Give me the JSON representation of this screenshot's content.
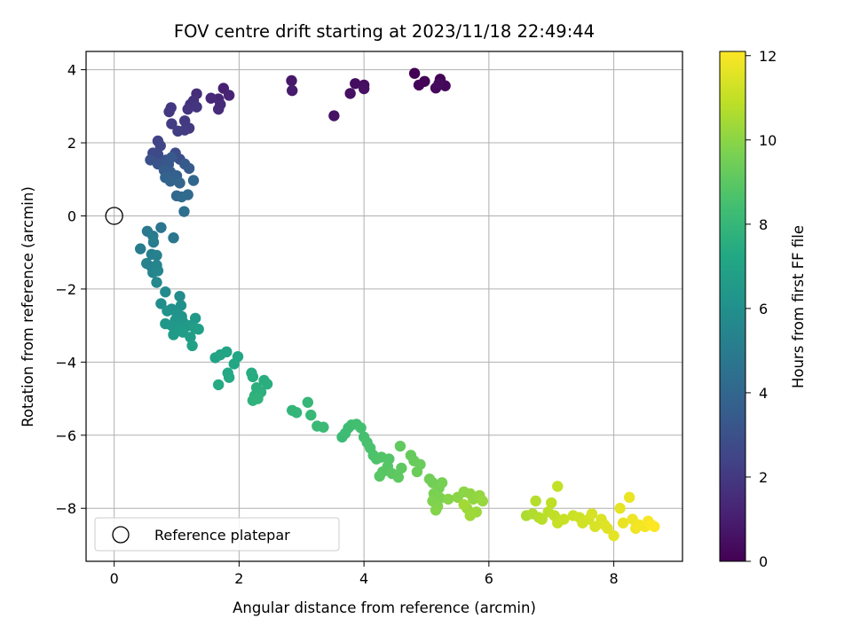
{
  "chart_data": {
    "type": "scatter",
    "title": "FOV centre drift starting at 2023/11/18 22:49:44",
    "xlabel": "Angular distance from reference (arcmin)",
    "ylabel": "Rotation from reference (arcmin)",
    "colorbar_label": "Hours from first FF file",
    "colormap": "viridis",
    "xlim": [
      -0.45,
      9.1
    ],
    "ylim": [
      -9.45,
      4.5
    ],
    "clim": [
      0,
      12.1
    ],
    "xticks": [
      0,
      2,
      4,
      6,
      8
    ],
    "yticks": [
      -8,
      -6,
      -4,
      -2,
      0,
      2,
      4
    ],
    "colorbar_ticks": [
      0,
      2,
      4,
      6,
      8,
      10,
      12
    ],
    "grid": true,
    "legend": {
      "placement": "lower-left",
      "entries": [
        "Reference platepar"
      ]
    },
    "reference_point": {
      "x": 0,
      "y": 0,
      "label": "Reference platepar"
    },
    "points": [
      {
        "x": 4.81,
        "y": 3.9,
        "t": 0.0
      },
      {
        "x": 5.22,
        "y": 3.74,
        "t": 0.05
      },
      {
        "x": 4.97,
        "y": 3.68,
        "t": 0.1
      },
      {
        "x": 4.88,
        "y": 3.58,
        "t": 0.15
      },
      {
        "x": 5.3,
        "y": 3.56,
        "t": 0.2
      },
      {
        "x": 5.15,
        "y": 3.5,
        "t": 0.25
      },
      {
        "x": 5.2,
        "y": 3.62,
        "t": 0.3
      },
      {
        "x": 3.86,
        "y": 3.62,
        "t": 0.4
      },
      {
        "x": 4.0,
        "y": 3.58,
        "t": 0.45
      },
      {
        "x": 3.78,
        "y": 3.35,
        "t": 0.5
      },
      {
        "x": 4.0,
        "y": 3.48,
        "t": 0.55
      },
      {
        "x": 3.52,
        "y": 2.74,
        "t": 0.6
      },
      {
        "x": 2.84,
        "y": 3.7,
        "t": 0.8
      },
      {
        "x": 2.85,
        "y": 3.43,
        "t": 0.9
      },
      {
        "x": 1.75,
        "y": 3.49,
        "t": 1.1
      },
      {
        "x": 1.84,
        "y": 3.3,
        "t": 1.2
      },
      {
        "x": 1.67,
        "y": 3.2,
        "t": 1.3
      },
      {
        "x": 1.55,
        "y": 3.22,
        "t": 1.4
      },
      {
        "x": 1.7,
        "y": 3.05,
        "t": 1.45
      },
      {
        "x": 1.67,
        "y": 2.92,
        "t": 1.5
      },
      {
        "x": 1.32,
        "y": 3.34,
        "t": 1.6
      },
      {
        "x": 1.27,
        "y": 3.15,
        "t": 1.7
      },
      {
        "x": 1.22,
        "y": 3.05,
        "t": 1.75
      },
      {
        "x": 1.18,
        "y": 2.92,
        "t": 1.8
      },
      {
        "x": 1.32,
        "y": 2.98,
        "t": 1.85
      },
      {
        "x": 0.91,
        "y": 2.96,
        "t": 1.9
      },
      {
        "x": 0.88,
        "y": 2.85,
        "t": 1.95
      },
      {
        "x": 1.13,
        "y": 2.6,
        "t": 2.0
      },
      {
        "x": 1.2,
        "y": 2.4,
        "t": 2.05
      },
      {
        "x": 1.13,
        "y": 2.35,
        "t": 2.1
      },
      {
        "x": 0.92,
        "y": 2.52,
        "t": 2.15
      },
      {
        "x": 1.02,
        "y": 2.32,
        "t": 2.2
      },
      {
        "x": 0.7,
        "y": 2.05,
        "t": 2.4
      },
      {
        "x": 0.74,
        "y": 1.92,
        "t": 2.5
      },
      {
        "x": 0.62,
        "y": 1.72,
        "t": 2.6
      },
      {
        "x": 0.7,
        "y": 1.68,
        "t": 2.7
      },
      {
        "x": 0.98,
        "y": 1.72,
        "t": 2.8
      },
      {
        "x": 1.05,
        "y": 1.55,
        "t": 2.9
      },
      {
        "x": 0.58,
        "y": 1.53,
        "t": 3.0
      },
      {
        "x": 0.7,
        "y": 1.42,
        "t": 3.1
      },
      {
        "x": 0.83,
        "y": 1.53,
        "t": 3.2
      },
      {
        "x": 0.87,
        "y": 1.41,
        "t": 3.3
      },
      {
        "x": 0.92,
        "y": 1.6,
        "t": 3.35
      },
      {
        "x": 1.13,
        "y": 1.42,
        "t": 3.4
      },
      {
        "x": 1.2,
        "y": 1.3,
        "t": 3.45
      },
      {
        "x": 0.8,
        "y": 1.25,
        "t": 3.5
      },
      {
        "x": 0.9,
        "y": 1.2,
        "t": 3.6
      },
      {
        "x": 1.0,
        "y": 1.1,
        "t": 3.7
      },
      {
        "x": 0.82,
        "y": 1.05,
        "t": 3.8
      },
      {
        "x": 0.9,
        "y": 0.95,
        "t": 3.85
      },
      {
        "x": 1.05,
        "y": 0.9,
        "t": 3.9
      },
      {
        "x": 1.27,
        "y": 0.97,
        "t": 4.0
      },
      {
        "x": 1.0,
        "y": 0.55,
        "t": 4.1
      },
      {
        "x": 1.08,
        "y": 0.52,
        "t": 4.15
      },
      {
        "x": 1.18,
        "y": 0.58,
        "t": 4.2
      },
      {
        "x": 1.12,
        "y": 0.12,
        "t": 4.4
      },
      {
        "x": 0.75,
        "y": -0.32,
        "t": 4.7
      },
      {
        "x": 0.95,
        "y": -0.6,
        "t": 4.8
      },
      {
        "x": 0.53,
        "y": -0.42,
        "t": 4.9
      },
      {
        "x": 0.62,
        "y": -0.55,
        "t": 5.0
      },
      {
        "x": 0.42,
        "y": -0.9,
        "t": 5.05
      },
      {
        "x": 0.63,
        "y": -0.72,
        "t": 5.1
      },
      {
        "x": 0.6,
        "y": -1.05,
        "t": 5.2
      },
      {
        "x": 0.68,
        "y": -1.08,
        "t": 5.25
      },
      {
        "x": 0.52,
        "y": -1.3,
        "t": 5.3
      },
      {
        "x": 0.6,
        "y": -1.4,
        "t": 5.35
      },
      {
        "x": 0.68,
        "y": -1.35,
        "t": 5.4
      },
      {
        "x": 0.62,
        "y": -1.55,
        "t": 5.45
      },
      {
        "x": 0.7,
        "y": -1.5,
        "t": 5.5
      },
      {
        "x": 0.68,
        "y": -1.82,
        "t": 5.6
      },
      {
        "x": 0.82,
        "y": -2.08,
        "t": 5.7
      },
      {
        "x": 1.05,
        "y": -2.2,
        "t": 5.8
      },
      {
        "x": 0.75,
        "y": -2.4,
        "t": 5.9
      },
      {
        "x": 0.92,
        "y": -2.55,
        "t": 6.0
      },
      {
        "x": 1.07,
        "y": -2.45,
        "t": 6.05
      },
      {
        "x": 0.85,
        "y": -2.6,
        "t": 6.1
      },
      {
        "x": 1.0,
        "y": -2.65,
        "t": 6.15
      },
      {
        "x": 1.08,
        "y": -2.75,
        "t": 6.2
      },
      {
        "x": 0.98,
        "y": -2.85,
        "t": 6.25
      },
      {
        "x": 1.1,
        "y": -2.9,
        "t": 6.3
      },
      {
        "x": 0.82,
        "y": -2.95,
        "t": 6.35
      },
      {
        "x": 0.92,
        "y": -3.0,
        "t": 6.4
      },
      {
        "x": 1.3,
        "y": -2.8,
        "t": 6.45
      },
      {
        "x": 1.2,
        "y": -3.0,
        "t": 6.5
      },
      {
        "x": 1.05,
        "y": -3.1,
        "t": 6.55
      },
      {
        "x": 0.95,
        "y": -3.25,
        "t": 6.6
      },
      {
        "x": 1.1,
        "y": -3.18,
        "t": 6.65
      },
      {
        "x": 1.22,
        "y": -3.32,
        "t": 6.7
      },
      {
        "x": 1.3,
        "y": -3.08,
        "t": 6.75
      },
      {
        "x": 1.35,
        "y": -3.1,
        "t": 6.8
      },
      {
        "x": 1.25,
        "y": -3.55,
        "t": 6.9
      },
      {
        "x": 1.62,
        "y": -3.88,
        "t": 7.0
      },
      {
        "x": 1.7,
        "y": -3.8,
        "t": 7.05
      },
      {
        "x": 1.8,
        "y": -3.72,
        "t": 7.1
      },
      {
        "x": 1.98,
        "y": -3.85,
        "t": 7.15
      },
      {
        "x": 1.92,
        "y": -4.05,
        "t": 7.2
      },
      {
        "x": 1.82,
        "y": -4.3,
        "t": 7.25
      },
      {
        "x": 1.84,
        "y": -4.42,
        "t": 7.3
      },
      {
        "x": 1.67,
        "y": -4.62,
        "t": 7.35
      },
      {
        "x": 2.2,
        "y": -4.3,
        "t": 7.4
      },
      {
        "x": 2.22,
        "y": -4.4,
        "t": 7.45
      },
      {
        "x": 2.4,
        "y": -4.5,
        "t": 7.5
      },
      {
        "x": 2.45,
        "y": -4.6,
        "t": 7.55
      },
      {
        "x": 2.28,
        "y": -4.7,
        "t": 7.6
      },
      {
        "x": 2.35,
        "y": -4.82,
        "t": 7.65
      },
      {
        "x": 2.25,
        "y": -4.92,
        "t": 7.7
      },
      {
        "x": 2.22,
        "y": -5.05,
        "t": 7.75
      },
      {
        "x": 2.3,
        "y": -5.0,
        "t": 7.8
      },
      {
        "x": 2.85,
        "y": -5.32,
        "t": 7.9
      },
      {
        "x": 2.92,
        "y": -5.38,
        "t": 7.95
      },
      {
        "x": 3.1,
        "y": -5.1,
        "t": 8.0
      },
      {
        "x": 3.15,
        "y": -5.45,
        "t": 8.05
      },
      {
        "x": 3.25,
        "y": -5.75,
        "t": 8.1
      },
      {
        "x": 3.35,
        "y": -5.78,
        "t": 8.15
      },
      {
        "x": 3.65,
        "y": -6.05,
        "t": 8.2
      },
      {
        "x": 3.7,
        "y": -5.95,
        "t": 8.25
      },
      {
        "x": 3.75,
        "y": -5.8,
        "t": 8.3
      },
      {
        "x": 3.8,
        "y": -5.72,
        "t": 8.35
      },
      {
        "x": 3.88,
        "y": -5.7,
        "t": 8.4
      },
      {
        "x": 3.95,
        "y": -5.8,
        "t": 8.45
      },
      {
        "x": 4.0,
        "y": -6.05,
        "t": 8.5
      },
      {
        "x": 4.05,
        "y": -6.2,
        "t": 8.55
      },
      {
        "x": 4.1,
        "y": -6.35,
        "t": 8.6
      },
      {
        "x": 4.15,
        "y": -6.55,
        "t": 8.65
      },
      {
        "x": 4.2,
        "y": -6.65,
        "t": 8.7
      },
      {
        "x": 4.28,
        "y": -6.6,
        "t": 8.75
      },
      {
        "x": 4.4,
        "y": -6.65,
        "t": 8.8
      },
      {
        "x": 4.38,
        "y": -6.85,
        "t": 8.85
      },
      {
        "x": 4.3,
        "y": -7.0,
        "t": 8.9
      },
      {
        "x": 4.25,
        "y": -7.12,
        "t": 8.95
      },
      {
        "x": 4.45,
        "y": -7.05,
        "t": 9.0
      },
      {
        "x": 4.55,
        "y": -7.15,
        "t": 9.05
      },
      {
        "x": 4.6,
        "y": -6.9,
        "t": 9.1
      },
      {
        "x": 4.58,
        "y": -6.3,
        "t": 9.15
      },
      {
        "x": 4.75,
        "y": -6.55,
        "t": 9.2
      },
      {
        "x": 4.8,
        "y": -6.7,
        "t": 9.25
      },
      {
        "x": 4.9,
        "y": -6.8,
        "t": 9.3
      },
      {
        "x": 4.85,
        "y": -7.0,
        "t": 9.35
      },
      {
        "x": 5.05,
        "y": -7.2,
        "t": 9.45
      },
      {
        "x": 5.1,
        "y": -7.3,
        "t": 9.5
      },
      {
        "x": 5.2,
        "y": -7.45,
        "t": 9.55
      },
      {
        "x": 5.25,
        "y": -7.3,
        "t": 9.6
      },
      {
        "x": 5.12,
        "y": -7.6,
        "t": 9.65
      },
      {
        "x": 5.22,
        "y": -7.72,
        "t": 9.7
      },
      {
        "x": 5.1,
        "y": -7.8,
        "t": 9.75
      },
      {
        "x": 5.18,
        "y": -7.95,
        "t": 9.8
      },
      {
        "x": 5.15,
        "y": -8.05,
        "t": 9.85
      },
      {
        "x": 5.35,
        "y": -7.75,
        "t": 9.9
      },
      {
        "x": 5.5,
        "y": -7.7,
        "t": 9.95
      },
      {
        "x": 5.6,
        "y": -7.55,
        "t": 10.0
      },
      {
        "x": 5.7,
        "y": -7.6,
        "t": 10.05
      },
      {
        "x": 5.75,
        "y": -7.75,
        "t": 10.1
      },
      {
        "x": 5.85,
        "y": -7.65,
        "t": 10.15
      },
      {
        "x": 5.9,
        "y": -7.8,
        "t": 10.2
      },
      {
        "x": 5.65,
        "y": -8.0,
        "t": 10.25
      },
      {
        "x": 5.8,
        "y": -8.1,
        "t": 10.3
      },
      {
        "x": 5.7,
        "y": -8.2,
        "t": 10.35
      },
      {
        "x": 5.6,
        "y": -7.9,
        "t": 10.4
      },
      {
        "x": 6.6,
        "y": -8.2,
        "t": 10.6
      },
      {
        "x": 6.7,
        "y": -8.15,
        "t": 10.65
      },
      {
        "x": 6.8,
        "y": -8.25,
        "t": 10.7
      },
      {
        "x": 6.75,
        "y": -7.8,
        "t": 10.75
      },
      {
        "x": 6.85,
        "y": -8.3,
        "t": 10.8
      },
      {
        "x": 6.95,
        "y": -8.1,
        "t": 10.85
      },
      {
        "x": 7.0,
        "y": -7.85,
        "t": 10.9
      },
      {
        "x": 7.05,
        "y": -8.2,
        "t": 10.95
      },
      {
        "x": 7.1,
        "y": -7.4,
        "t": 11.0
      },
      {
        "x": 7.1,
        "y": -8.4,
        "t": 11.05
      },
      {
        "x": 7.2,
        "y": -8.3,
        "t": 11.1
      },
      {
        "x": 7.35,
        "y": -8.2,
        "t": 11.15
      },
      {
        "x": 7.45,
        "y": -8.25,
        "t": 11.2
      },
      {
        "x": 7.5,
        "y": -8.4,
        "t": 11.25
      },
      {
        "x": 7.6,
        "y": -8.3,
        "t": 11.3
      },
      {
        "x": 7.65,
        "y": -8.15,
        "t": 11.35
      },
      {
        "x": 7.7,
        "y": -8.5,
        "t": 11.4
      },
      {
        "x": 7.8,
        "y": -8.3,
        "t": 11.45
      },
      {
        "x": 7.85,
        "y": -8.45,
        "t": 11.5
      },
      {
        "x": 7.9,
        "y": -8.55,
        "t": 11.55
      },
      {
        "x": 8.0,
        "y": -8.75,
        "t": 11.6
      },
      {
        "x": 8.1,
        "y": -8.0,
        "t": 11.65
      },
      {
        "x": 8.15,
        "y": -8.4,
        "t": 11.7
      },
      {
        "x": 8.25,
        "y": -7.7,
        "t": 11.75
      },
      {
        "x": 8.3,
        "y": -8.3,
        "t": 11.8
      },
      {
        "x": 8.35,
        "y": -8.55,
        "t": 11.85
      },
      {
        "x": 8.4,
        "y": -8.45,
        "t": 11.9
      },
      {
        "x": 8.5,
        "y": -8.5,
        "t": 11.95
      },
      {
        "x": 8.55,
        "y": -8.35,
        "t": 12.0
      },
      {
        "x": 8.6,
        "y": -8.45,
        "t": 12.05
      },
      {
        "x": 8.65,
        "y": -8.5,
        "t": 12.1
      }
    ]
  }
}
